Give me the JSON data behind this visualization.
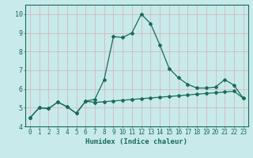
{
  "xlabel": "Humidex (Indice chaleur)",
  "bg_color": "#c8eaea",
  "grid_color": "#d4b8b8",
  "line_color": "#1a6b5a",
  "xlim": [
    -0.5,
    23.5
  ],
  "ylim": [
    4.0,
    10.5
  ],
  "xticks": [
    0,
    1,
    2,
    3,
    4,
    5,
    6,
    7,
    8,
    9,
    10,
    11,
    12,
    13,
    14,
    15,
    16,
    17,
    18,
    19,
    20,
    21,
    22,
    23
  ],
  "yticks": [
    4,
    5,
    6,
    7,
    8,
    9,
    10
  ],
  "curve1_x": [
    0,
    1,
    2,
    3,
    4,
    5,
    6,
    7,
    8,
    9,
    10,
    11,
    12,
    13,
    14,
    15,
    16,
    17,
    18,
    19,
    20,
    21,
    22,
    23
  ],
  "curve1_y": [
    4.45,
    5.0,
    4.95,
    5.3,
    5.05,
    4.7,
    5.35,
    5.45,
    6.5,
    8.8,
    8.75,
    9.0,
    10.0,
    9.5,
    8.35,
    7.1,
    6.6,
    6.25,
    6.05,
    6.05,
    6.1,
    6.5,
    6.2,
    5.5
  ],
  "curve2_x": [
    0,
    1,
    2,
    3,
    4,
    5,
    6,
    7,
    8,
    9,
    10,
    11,
    12,
    13,
    14,
    15,
    16,
    17,
    18,
    19,
    20,
    21,
    22,
    23
  ],
  "curve2_y": [
    4.45,
    5.0,
    4.95,
    5.3,
    5.05,
    4.7,
    5.35,
    5.28,
    5.32,
    5.36,
    5.4,
    5.44,
    5.48,
    5.52,
    5.56,
    5.6,
    5.64,
    5.68,
    5.72,
    5.76,
    5.8,
    5.84,
    5.88,
    5.5
  ],
  "font_color": "#1a6b5a",
  "marker": "D",
  "markersize": 2.0,
  "linewidth": 0.9,
  "tick_fontsize": 5.5,
  "xlabel_fontsize": 6.5
}
